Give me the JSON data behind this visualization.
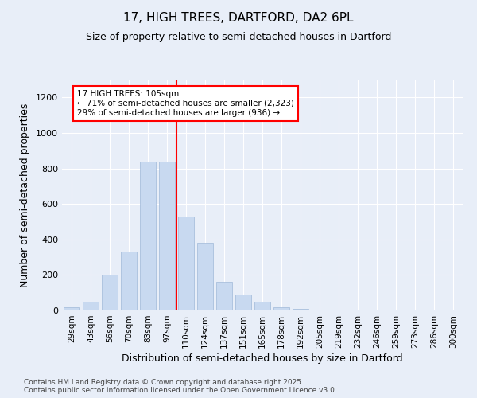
{
  "title1": "17, HIGH TREES, DARTFORD, DA2 6PL",
  "title2": "Size of property relative to semi-detached houses in Dartford",
  "xlabel": "Distribution of semi-detached houses by size in Dartford",
  "ylabel": "Number of semi-detached properties",
  "categories": [
    "29sqm",
    "43sqm",
    "56sqm",
    "70sqm",
    "83sqm",
    "97sqm",
    "110sqm",
    "124sqm",
    "137sqm",
    "151sqm",
    "165sqm",
    "178sqm",
    "192sqm",
    "205sqm",
    "219sqm",
    "232sqm",
    "246sqm",
    "259sqm",
    "273sqm",
    "286sqm",
    "300sqm"
  ],
  "values": [
    20,
    50,
    200,
    330,
    840,
    840,
    530,
    380,
    160,
    90,
    50,
    20,
    10,
    5,
    2,
    1,
    0,
    0,
    0,
    0,
    0
  ],
  "bar_color": "#c8d9f0",
  "bar_edge_color": "#a0b8d8",
  "red_line_index": 6,
  "red_line_label": "17 HIGH TREES: 105sqm",
  "annotation_line1": "← 71% of semi-detached houses are smaller (2,323)",
  "annotation_line2": "29% of semi-detached houses are larger (936) →",
  "ylim": [
    0,
    1300
  ],
  "yticks": [
    0,
    200,
    400,
    600,
    800,
    1000,
    1200
  ],
  "footer1": "Contains HM Land Registry data © Crown copyright and database right 2025.",
  "footer2": "Contains public sector information licensed under the Open Government Licence v3.0.",
  "bg_color": "#e8eef8"
}
